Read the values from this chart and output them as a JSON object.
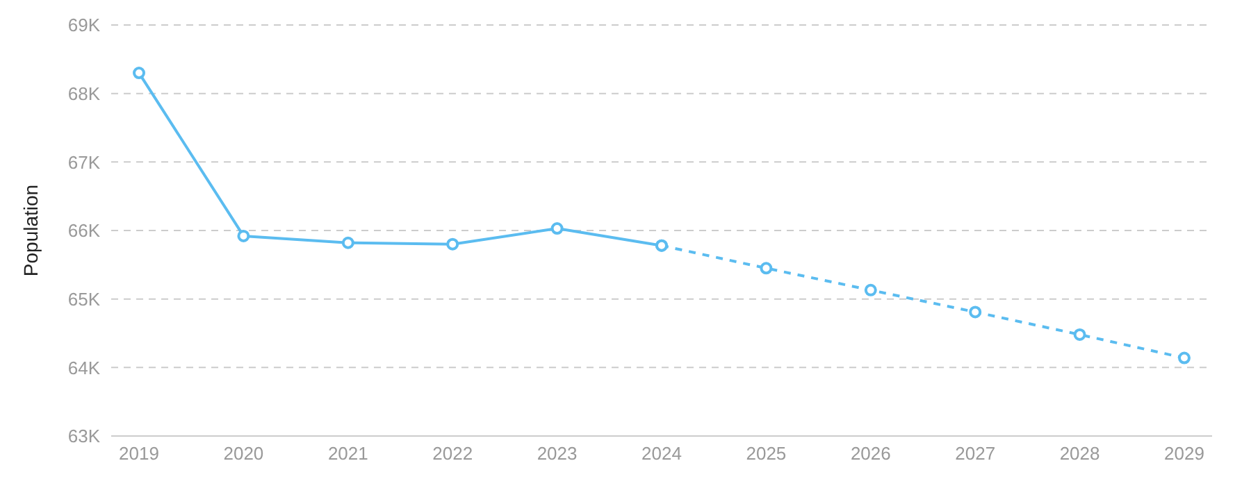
{
  "chart_data": {
    "type": "line",
    "ylabel": "Population",
    "categories": [
      "2019",
      "2020",
      "2021",
      "2022",
      "2023",
      "2024",
      "2025",
      "2026",
      "2027",
      "2028",
      "2029"
    ],
    "series": [
      {
        "color": "#5bbcf0",
        "line_style": "solid",
        "values": [
          68300,
          65920,
          65820,
          65800,
          66030,
          65780,
          null,
          null,
          null,
          null,
          null
        ]
      },
      {
        "color": "#5bbcf0",
        "line_style": "dashed",
        "values": [
          null,
          null,
          null,
          null,
          null,
          65780,
          65450,
          65130,
          64810,
          64480,
          64140
        ]
      }
    ],
    "ylim": [
      63000,
      69000
    ],
    "yticks": [
      {
        "value": 63000,
        "label": "63K"
      },
      {
        "value": 64000,
        "label": "64K"
      },
      {
        "value": 65000,
        "label": "65K"
      },
      {
        "value": 66000,
        "label": "66K"
      },
      {
        "value": 67000,
        "label": "67K"
      },
      {
        "value": 68000,
        "label": "68K"
      },
      {
        "value": 69000,
        "label": "69K"
      }
    ],
    "grid": "y",
    "marker": "circle",
    "legend": false
  }
}
